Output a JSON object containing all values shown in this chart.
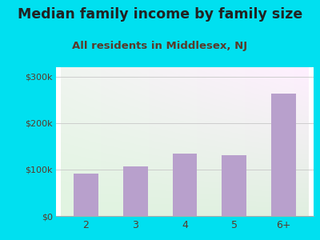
{
  "title": "Median family income by family size",
  "subtitle": "All residents in Middlesex, NJ",
  "categories": [
    "2",
    "3",
    "4",
    "5",
    "6+"
  ],
  "values": [
    92000,
    107000,
    135000,
    130000,
    263000
  ],
  "bar_color": "#b8a0cc",
  "background_outer": "#00e0f0",
  "bg_top_left": "#d0ebe0",
  "bg_top_right": "#f0f8f0",
  "bg_bottom_left": "#d8f0d0",
  "bg_bottom_right": "#f5faf5",
  "title_color": "#222222",
  "subtitle_color": "#5a3a2a",
  "tick_color": "#5a3a2a",
  "grid_color": "#c8c8c8",
  "ylim": [
    0,
    320000
  ],
  "yticks": [
    0,
    100000,
    200000,
    300000
  ],
  "ytick_labels": [
    "$0",
    "$100k",
    "$200k",
    "$300k"
  ],
  "title_fontsize": 12.5,
  "subtitle_fontsize": 9.5
}
